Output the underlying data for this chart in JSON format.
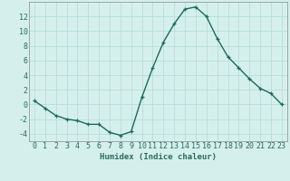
{
  "x": [
    0,
    1,
    2,
    3,
    4,
    5,
    6,
    7,
    8,
    9,
    10,
    11,
    12,
    13,
    14,
    15,
    16,
    17,
    18,
    19,
    20,
    21,
    22,
    23
  ],
  "y": [
    0.5,
    -0.5,
    -1.5,
    -2.0,
    -2.2,
    -2.7,
    -2.7,
    -3.8,
    -4.2,
    -3.7,
    1.0,
    5.0,
    8.5,
    11.0,
    13.0,
    13.3,
    12.0,
    9.0,
    6.5,
    5.0,
    3.5,
    2.2,
    1.5,
    0.0
  ],
  "line_color": "#1a6b5a",
  "marker": "+",
  "marker_size": 3.5,
  "linewidth": 1.0,
  "bg_color": "#d5f0ec",
  "grid_color": "#b8ddd8",
  "xlabel": "Humidex (Indice chaleur)",
  "ylim": [
    -5,
    14
  ],
  "xlim": [
    -0.5,
    23.5
  ],
  "yticks": [
    -4,
    -2,
    0,
    2,
    4,
    6,
    8,
    10,
    12
  ],
  "xticks": [
    0,
    1,
    2,
    3,
    4,
    5,
    6,
    7,
    8,
    9,
    10,
    11,
    12,
    13,
    14,
    15,
    16,
    17,
    18,
    19,
    20,
    21,
    22,
    23
  ],
  "xlabel_fontsize": 6.5,
  "tick_fontsize": 6.0,
  "axis_color": "#2a6b5a",
  "spine_color": "#888888"
}
